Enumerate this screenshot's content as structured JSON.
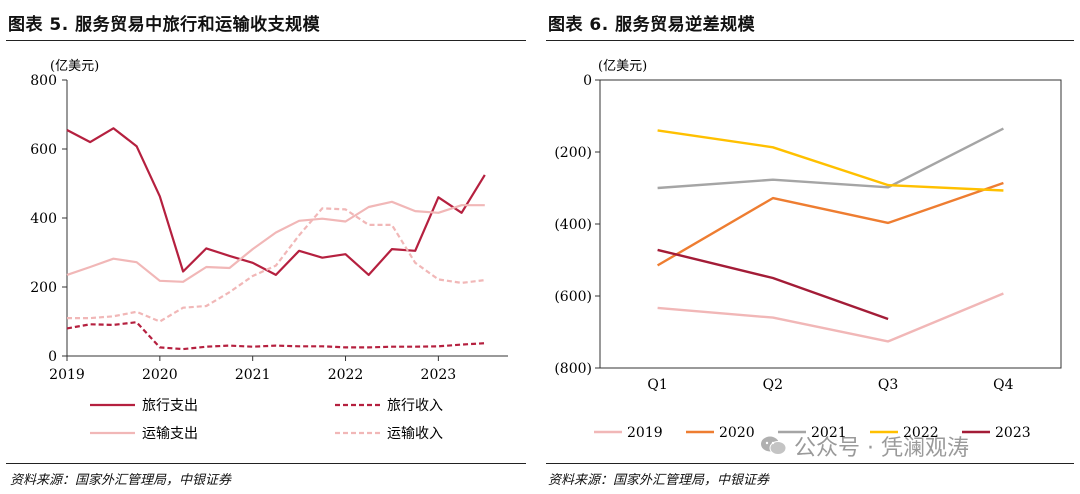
{
  "left": {
    "title": "图表 5. 服务贸易中旅行和运输收支规模",
    "source": "资料来源：国家外汇管理局，中银证券"
  },
  "right": {
    "title": "图表 6. 服务贸易逆差规模",
    "source": "资料来源：国家外汇管理局，中银证券"
  },
  "watermark": {
    "text": "公众号 · 凭澜观涛",
    "icon": "wechat-icon"
  },
  "chart_data": [
    {
      "type": "line",
      "title": "服务贸易中旅行和运输收支规模",
      "ylabel": "(亿美元)",
      "ylim": [
        0,
        800
      ],
      "yticks": [
        0,
        200,
        400,
        600,
        800
      ],
      "xlim": [
        2019,
        2023.75
      ],
      "xticks": [
        2019,
        2020,
        2021,
        2022,
        2023
      ],
      "legend_position": "bottom",
      "series": [
        {
          "name": "旅行支出",
          "color": "#b5203f",
          "dash": "",
          "x": [
            2019,
            2019.25,
            2019.5,
            2019.75,
            2020,
            2020.25,
            2020.5,
            2020.75,
            2021,
            2021.25,
            2021.5,
            2021.75,
            2022,
            2022.25,
            2022.5,
            2022.75,
            2023,
            2023.25,
            2023.5
          ],
          "values": [
            655,
            620,
            660,
            608,
            463,
            245,
            312,
            290,
            270,
            235,
            305,
            285,
            295,
            235,
            310,
            305,
            460,
            415,
            525
          ]
        },
        {
          "name": "旅行收入",
          "color": "#b5203f",
          "dash": "5,3",
          "x": [
            2019,
            2019.25,
            2019.5,
            2019.75,
            2020,
            2020.25,
            2020.5,
            2020.75,
            2021,
            2021.25,
            2021.5,
            2021.75,
            2022,
            2022.25,
            2022.5,
            2022.75,
            2023,
            2023.25,
            2023.5
          ],
          "values": [
            80,
            92,
            90,
            98,
            25,
            20,
            27,
            30,
            27,
            30,
            28,
            28,
            25,
            25,
            27,
            27,
            28,
            33,
            37
          ]
        },
        {
          "name": "运输支出",
          "color": "#f1b7b7",
          "dash": "",
          "x": [
            2019,
            2019.25,
            2019.5,
            2019.75,
            2020,
            2020.25,
            2020.5,
            2020.75,
            2021,
            2021.25,
            2021.5,
            2021.75,
            2022,
            2022.25,
            2022.5,
            2022.75,
            2023,
            2023.25,
            2023.5
          ],
          "values": [
            235,
            258,
            282,
            272,
            218,
            215,
            258,
            255,
            310,
            358,
            392,
            398,
            390,
            432,
            447,
            420,
            415,
            437,
            437
          ]
        },
        {
          "name": "运输收入",
          "color": "#f1b7b7",
          "dash": "5,3",
          "x": [
            2019,
            2019.25,
            2019.5,
            2019.75,
            2020,
            2020.25,
            2020.5,
            2020.75,
            2021,
            2021.25,
            2021.5,
            2021.75,
            2022,
            2022.25,
            2022.5,
            2022.75,
            2023,
            2023.25,
            2023.5
          ],
          "values": [
            110,
            110,
            115,
            128,
            100,
            140,
            145,
            185,
            232,
            262,
            350,
            428,
            425,
            380,
            380,
            270,
            222,
            212,
            220
          ]
        }
      ]
    },
    {
      "type": "line",
      "title": "服务贸易逆差规模",
      "ylabel": "(亿美元)",
      "ylim": [
        -800,
        0
      ],
      "yticks": [
        0,
        -200,
        -400,
        -600,
        -800
      ],
      "ytick_labels": [
        "0",
        "(200)",
        "(400)",
        "(600)",
        "(800)"
      ],
      "categories": [
        "Q1",
        "Q2",
        "Q3",
        "Q4"
      ],
      "legend_position": "bottom",
      "series": [
        {
          "name": "2019",
          "color": "#f1b7b7",
          "values": [
            -633,
            -660,
            -726,
            -593
          ]
        },
        {
          "name": "2020",
          "color": "#ee7d31",
          "values": [
            -515,
            -328,
            -397,
            -286
          ]
        },
        {
          "name": "2021",
          "color": "#a5a5a5",
          "values": [
            -300,
            -277,
            -298,
            -135
          ]
        },
        {
          "name": "2022",
          "color": "#ffc000",
          "values": [
            -140,
            -187,
            -292,
            -307
          ]
        },
        {
          "name": "2023",
          "color": "#a31c37",
          "values": [
            -472,
            -550,
            -664,
            null
          ]
        }
      ]
    }
  ]
}
